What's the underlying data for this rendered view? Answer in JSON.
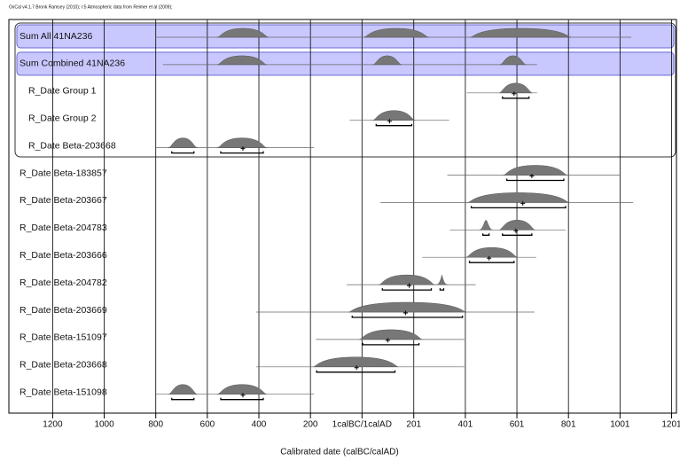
{
  "chart_data": {
    "type": "oxcal-multiplot",
    "title": "OxCal v4.1.7 Bronk Ramsey (2010); r:5 Atmospheric data from Reimer et al (2009);",
    "x_label": "Calibrated date (calBC/calAD)",
    "xlim": [
      -1370,
      1220
    ],
    "xticks": [
      {
        "value": -1200,
        "label": "1200"
      },
      {
        "value": -1000,
        "label": "1000"
      },
      {
        "value": -800,
        "label": "800"
      },
      {
        "value": -600,
        "label": "600"
      },
      {
        "value": -400,
        "label": "400"
      },
      {
        "value": -200,
        "label": "200"
      },
      {
        "value": 0,
        "label": "1calBC/1calAD"
      },
      201,
      401,
      601,
      801,
      1001,
      1201
    ],
    "grid": true,
    "color": "#777777",
    "rows": [
      {
        "name": "Sum All 41NA236",
        "extent": [
          -803,
          1045
        ],
        "hpd": [
          [
            -548,
            -376
          ],
          [
            21,
            245
          ],
          [
            434,
            797
          ]
        ],
        "median": null
      },
      {
        "name": "Sum Combined 41NA236",
        "extent": [
          -772,
          679
        ],
        "hpd": [
          [
            -548,
            -383
          ],
          [
            55,
            141
          ],
          [
            548,
            624
          ]
        ],
        "median": null
      },
      {
        "name": "R_Date Group 1",
        "extent": [
          407,
          679
        ],
        "hpd": [
          [
            545,
            648
          ]
        ],
        "median": 590
      },
      {
        "name": "R_Date Group 2",
        "extent": [
          -48,
          338
        ],
        "hpd": [
          [
            55,
            193
          ]
        ],
        "median": 107
      },
      {
        "name": "R_Date Beta-203668",
        "extent": [
          -803,
          -186
        ],
        "hpd": [
          [
            -738,
            -652
          ],
          [
            -548,
            -383
          ]
        ],
        "median": -462
      },
      {
        "name": "R_Date Beta-183857",
        "extent": [
          331,
          1003
        ],
        "hpd": [
          [
            562,
            783
          ]
        ],
        "median": 659
      },
      {
        "name": "R_Date Beta-203667",
        "extent": [
          72,
          1052
        ],
        "hpd": [
          [
            424,
            790
          ]
        ],
        "median": 624
      },
      {
        "name": "R_Date Beta-204783",
        "extent": [
          341,
          790
        ],
        "hpd": [
          [
            469,
            493
          ],
          [
            545,
            659
          ]
        ],
        "median": 597
      },
      {
        "name": "R_Date Beta-203666",
        "extent": [
          234,
          676
        ],
        "hpd": [
          [
            417,
            590
          ]
        ],
        "median": 493
      },
      {
        "name": "R_Date Beta-204782",
        "extent": [
          -59,
          441
        ],
        "hpd": [
          [
            79,
            269
          ],
          [
            303,
            317
          ]
        ],
        "median": 183
      },
      {
        "name": "R_Date Beta-203669",
        "extent": [
          -410,
          669
        ],
        "hpd": [
          [
            -38,
            390
          ]
        ],
        "median": 169
      },
      {
        "name": "R_Date Beta-151097",
        "extent": [
          -179,
          397
        ],
        "hpd": [
          [
            3,
            221
          ]
        ],
        "median": 100
      },
      {
        "name": "R_Date Beta-203668",
        "extent": [
          -410,
          397
        ],
        "hpd": [
          [
            -176,
            128
          ]
        ],
        "median": -21
      },
      {
        "name": "R_Date Beta-151098",
        "extent": [
          -803,
          -186
        ],
        "hpd": [
          [
            -738,
            -652
          ],
          [
            -548,
            -383
          ]
        ],
        "median": -462
      }
    ]
  }
}
